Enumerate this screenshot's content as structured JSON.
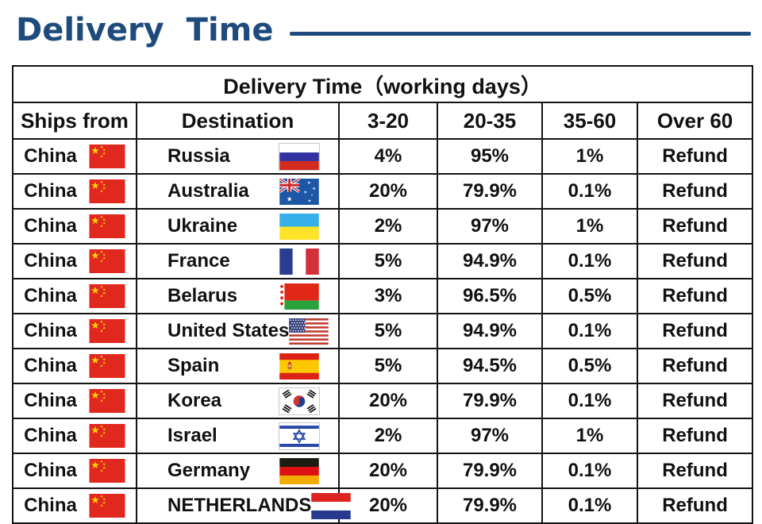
{
  "heading": {
    "title": "Delivery Time",
    "accent_color": "#1f4b7c"
  },
  "table": {
    "merged_title": "Delivery Time（working days）",
    "headers": [
      "Ships from",
      "Destination",
      "3-20",
      "20-35",
      "35-60",
      "Over 60"
    ],
    "rows": [
      {
        "ships_from": "China",
        "ships_flag": "china-flag-icon",
        "destination": "Russia",
        "dest_flag": "russia-flag-icon",
        "p3_20": "4%",
        "p20_35": "95%",
        "p35_60": "1%",
        "over_60": "Refund"
      },
      {
        "ships_from": "China",
        "ships_flag": "china-flag-icon",
        "destination": "Australia",
        "dest_flag": "australia-flag-icon",
        "p3_20": "20%",
        "p20_35": "79.9%",
        "p35_60": "0.1%",
        "over_60": "Refund"
      },
      {
        "ships_from": "China",
        "ships_flag": "china-flag-icon",
        "destination": "Ukraine",
        "dest_flag": "ukraine-flag-icon",
        "p3_20": "2%",
        "p20_35": "97%",
        "p35_60": "1%",
        "over_60": "Refund"
      },
      {
        "ships_from": "China",
        "ships_flag": "china-flag-icon",
        "destination": "France",
        "dest_flag": "france-flag-icon",
        "p3_20": "5%",
        "p20_35": "94.9%",
        "p35_60": "0.1%",
        "over_60": "Refund"
      },
      {
        "ships_from": "China",
        "ships_flag": "china-flag-icon",
        "destination": "Belarus",
        "dest_flag": "belarus-flag-icon",
        "p3_20": "3%",
        "p20_35": "96.5%",
        "p35_60": "0.5%",
        "over_60": "Refund"
      },
      {
        "ships_from": "China",
        "ships_flag": "china-flag-icon",
        "destination": "United States",
        "dest_flag": "united-states-flag-icon",
        "p3_20": "5%",
        "p20_35": "94.9%",
        "p35_60": "0.1%",
        "over_60": "Refund"
      },
      {
        "ships_from": "China",
        "ships_flag": "china-flag-icon",
        "destination": "Spain",
        "dest_flag": "spain-flag-icon",
        "p3_20": "5%",
        "p20_35": "94.5%",
        "p35_60": "0.5%",
        "over_60": "Refund"
      },
      {
        "ships_from": "China",
        "ships_flag": "china-flag-icon",
        "destination": "Korea",
        "dest_flag": "korea-flag-icon",
        "p3_20": "20%",
        "p20_35": "79.9%",
        "p35_60": "0.1%",
        "over_60": "Refund"
      },
      {
        "ships_from": "China",
        "ships_flag": "china-flag-icon",
        "destination": "Israel",
        "dest_flag": "israel-flag-icon",
        "p3_20": "2%",
        "p20_35": "97%",
        "p35_60": "1%",
        "over_60": "Refund"
      },
      {
        "ships_from": "China",
        "ships_flag": "china-flag-icon",
        "destination": "Germany",
        "dest_flag": "germany-flag-icon",
        "p3_20": "20%",
        "p20_35": "79.9%",
        "p35_60": "0.1%",
        "over_60": "Refund"
      },
      {
        "ships_from": "China",
        "ships_flag": "china-flag-icon",
        "destination": "NETHERLANDS",
        "dest_flag": "netherlands-flag-icon",
        "p3_20": "20%",
        "p20_35": "79.9%",
        "p35_60": "0.1%",
        "over_60": "Refund"
      }
    ]
  }
}
